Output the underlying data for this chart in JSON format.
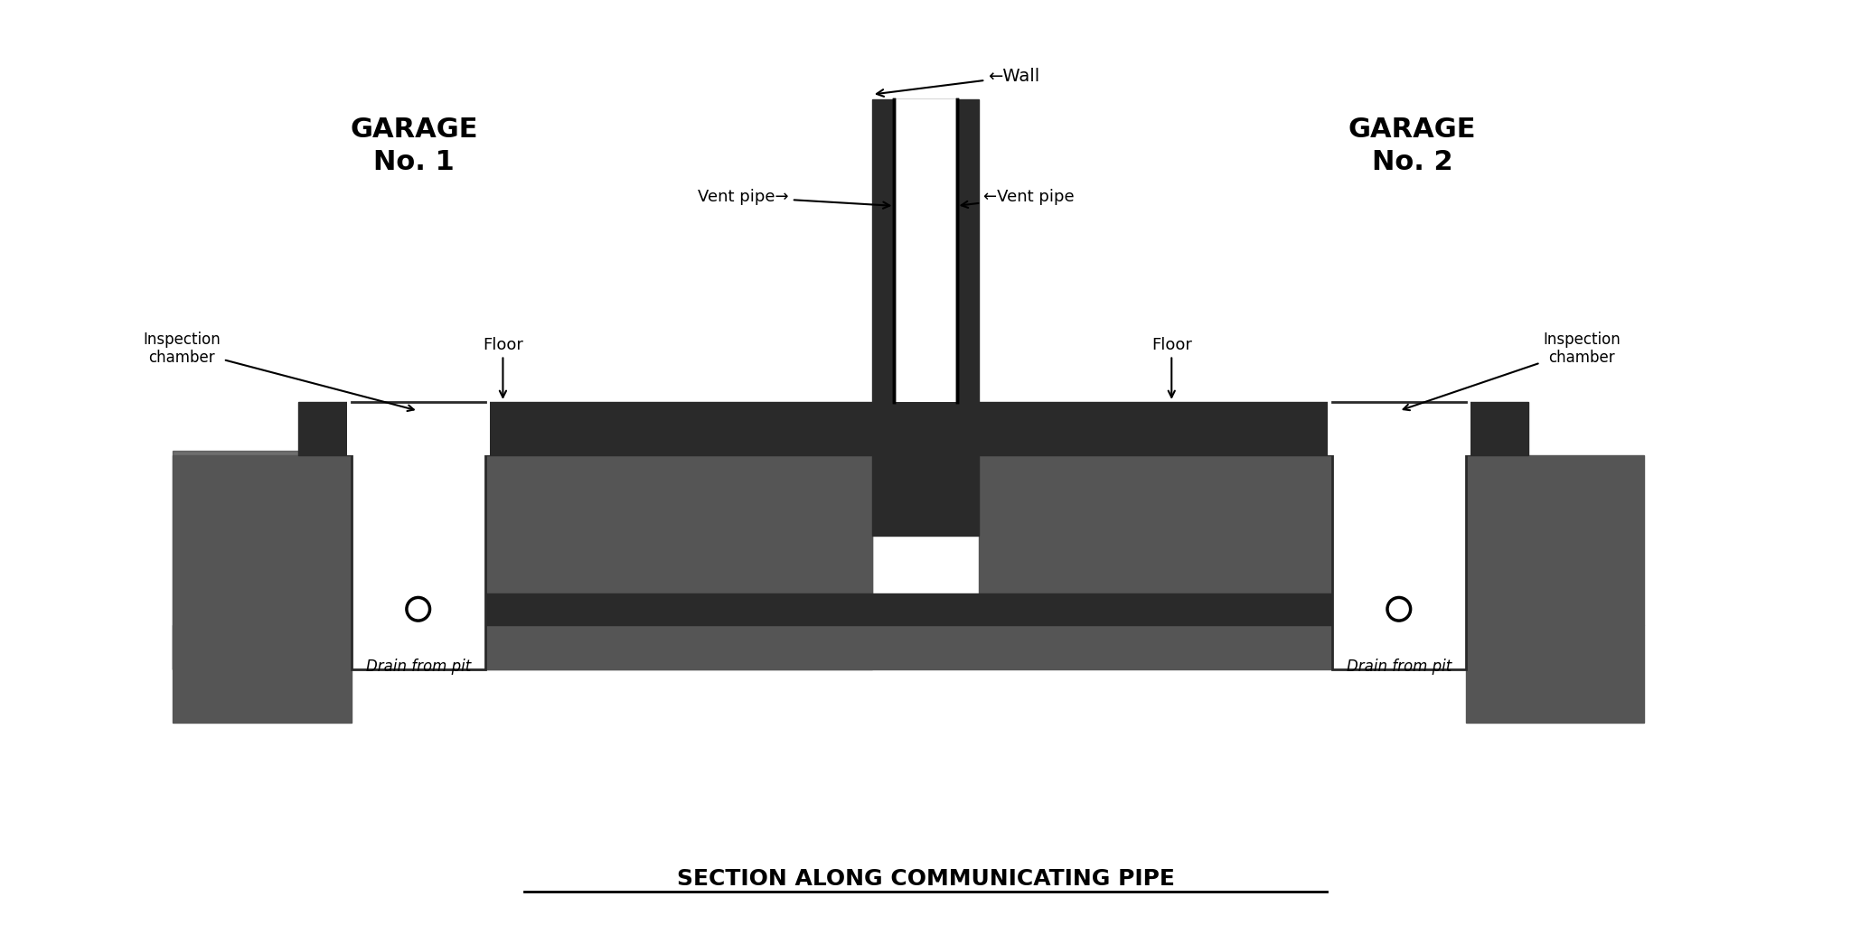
{
  "title": "SECTION ALONG COMMUNICATING PIPE",
  "bg_color": "#ffffff",
  "dark_color": "#2a2a2a",
  "hatching_color": "#555555",
  "labels": {
    "garage1": "GARAGE\nNo. 1",
    "garage2": "GARAGE\nNo. 2",
    "wall": "←Wall",
    "vent_pipe_left": "Vent pipe→",
    "vent_pipe_right": "←Vent pipe",
    "inspection_left": "Inspection\nchamber",
    "inspection_right": "Inspection\nchamber",
    "floor_left": "Floor",
    "floor_right": "Floor",
    "drain_left": "Drain from pit",
    "drain_right": "Drain from pit"
  },
  "figsize": [
    20.48,
    10.24
  ],
  "dpi": 100
}
